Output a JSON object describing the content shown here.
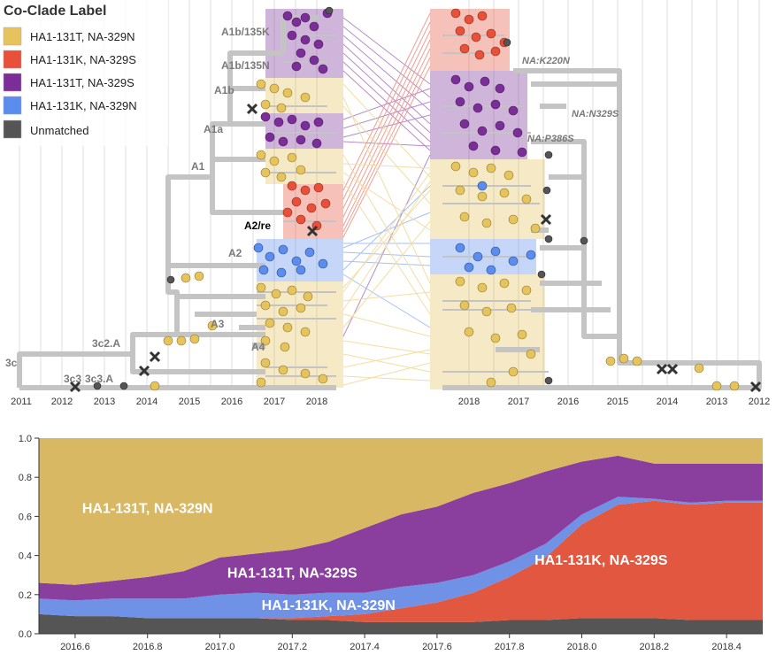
{
  "legend": {
    "title": "Co-Clade Label",
    "items": [
      {
        "label": "HA1-131T, NA-329N",
        "color": "#E6C35C"
      },
      {
        "label": "HA1-131K, NA-329S",
        "color": "#E8503A"
      },
      {
        "label": "HA1-131T, NA-329S",
        "color": "#7B2E98"
      },
      {
        "label": "HA1-131K, NA-329N",
        "color": "#5B8DEF"
      },
      {
        "label": "Unmatched",
        "color": "#555555"
      }
    ]
  },
  "left_tree": {
    "axis_ticks": [
      "2011",
      "2012",
      "2013",
      "2014",
      "2015",
      "2016",
      "2017",
      "2018"
    ],
    "clade_labels": [
      "A1b/135K",
      "A1b/135N",
      "A1b",
      "A1a",
      "A1",
      "A2/re",
      "A2",
      "A3",
      "A4",
      "3c2.A",
      "3c",
      "3c3",
      "3c3.A"
    ]
  },
  "right_tree": {
    "axis_ticks": [
      "2018",
      "2017",
      "2016",
      "2015",
      "2014",
      "2013",
      "2012"
    ],
    "mutation_labels": [
      "NA:K220N",
      "NA:N329S",
      "NA:P386S"
    ]
  },
  "chart_data": {
    "type": "area",
    "stacked": true,
    "x": [
      2016.5,
      2016.6,
      2016.7,
      2016.8,
      2016.9,
      2017.0,
      2017.1,
      2017.2,
      2017.3,
      2017.4,
      2017.5,
      2017.6,
      2017.7,
      2017.8,
      2017.9,
      2018.0,
      2018.1,
      2018.2,
      2018.3,
      2018.4,
      2018.5
    ],
    "series": [
      {
        "name": "Unmatched",
        "color": "#555555",
        "values": [
          0.1,
          0.09,
          0.09,
          0.08,
          0.08,
          0.08,
          0.08,
          0.07,
          0.07,
          0.06,
          0.06,
          0.06,
          0.06,
          0.07,
          0.07,
          0.08,
          0.08,
          0.08,
          0.07,
          0.07,
          0.07
        ]
      },
      {
        "name": "HA1-131K, NA-329S",
        "color": "#E2573F",
        "values": [
          0.0,
          0.0,
          0.0,
          0.0,
          0.0,
          0.0,
          0.0,
          0.01,
          0.02,
          0.04,
          0.07,
          0.1,
          0.15,
          0.22,
          0.32,
          0.48,
          0.58,
          0.6,
          0.59,
          0.6,
          0.6
        ]
      },
      {
        "name": "HA1-131K, NA-329N",
        "color": "#6F92E6",
        "values": [
          0.08,
          0.08,
          0.09,
          0.1,
          0.1,
          0.12,
          0.13,
          0.12,
          0.12,
          0.11,
          0.11,
          0.1,
          0.09,
          0.08,
          0.07,
          0.05,
          0.04,
          0.01,
          0.01,
          0.01,
          0.01
        ]
      },
      {
        "name": "HA1-131T, NA-329S",
        "color": "#8A3E9E",
        "values": [
          0.08,
          0.08,
          0.09,
          0.11,
          0.14,
          0.19,
          0.2,
          0.23,
          0.26,
          0.33,
          0.37,
          0.39,
          0.42,
          0.4,
          0.37,
          0.27,
          0.21,
          0.18,
          0.2,
          0.19,
          0.19
        ]
      },
      {
        "name": "HA1-131T, NA-329N",
        "color": "#D9B864",
        "values": [
          0.74,
          0.75,
          0.73,
          0.71,
          0.68,
          0.61,
          0.59,
          0.57,
          0.53,
          0.46,
          0.39,
          0.35,
          0.28,
          0.23,
          0.17,
          0.12,
          0.09,
          0.13,
          0.13,
          0.13,
          0.13
        ]
      }
    ],
    "xlim": [
      2016.5,
      2018.5
    ],
    "ylim": [
      0,
      1.0
    ],
    "xticks": [
      "2016.6",
      "2016.8",
      "2017.0",
      "2017.2",
      "2017.4",
      "2017.6",
      "2017.8",
      "2018.0",
      "2018.2",
      "2018.4"
    ],
    "yticks": [
      "0.0",
      "0.2",
      "0.4",
      "0.6",
      "0.8",
      "1.0"
    ],
    "labels": [
      {
        "text": "HA1-131T, NA-329N"
      },
      {
        "text": "HA1-131T, NA-329S"
      },
      {
        "text": "HA1-131K, NA-329N"
      },
      {
        "text": "HA1-131K, NA-329S"
      }
    ]
  }
}
